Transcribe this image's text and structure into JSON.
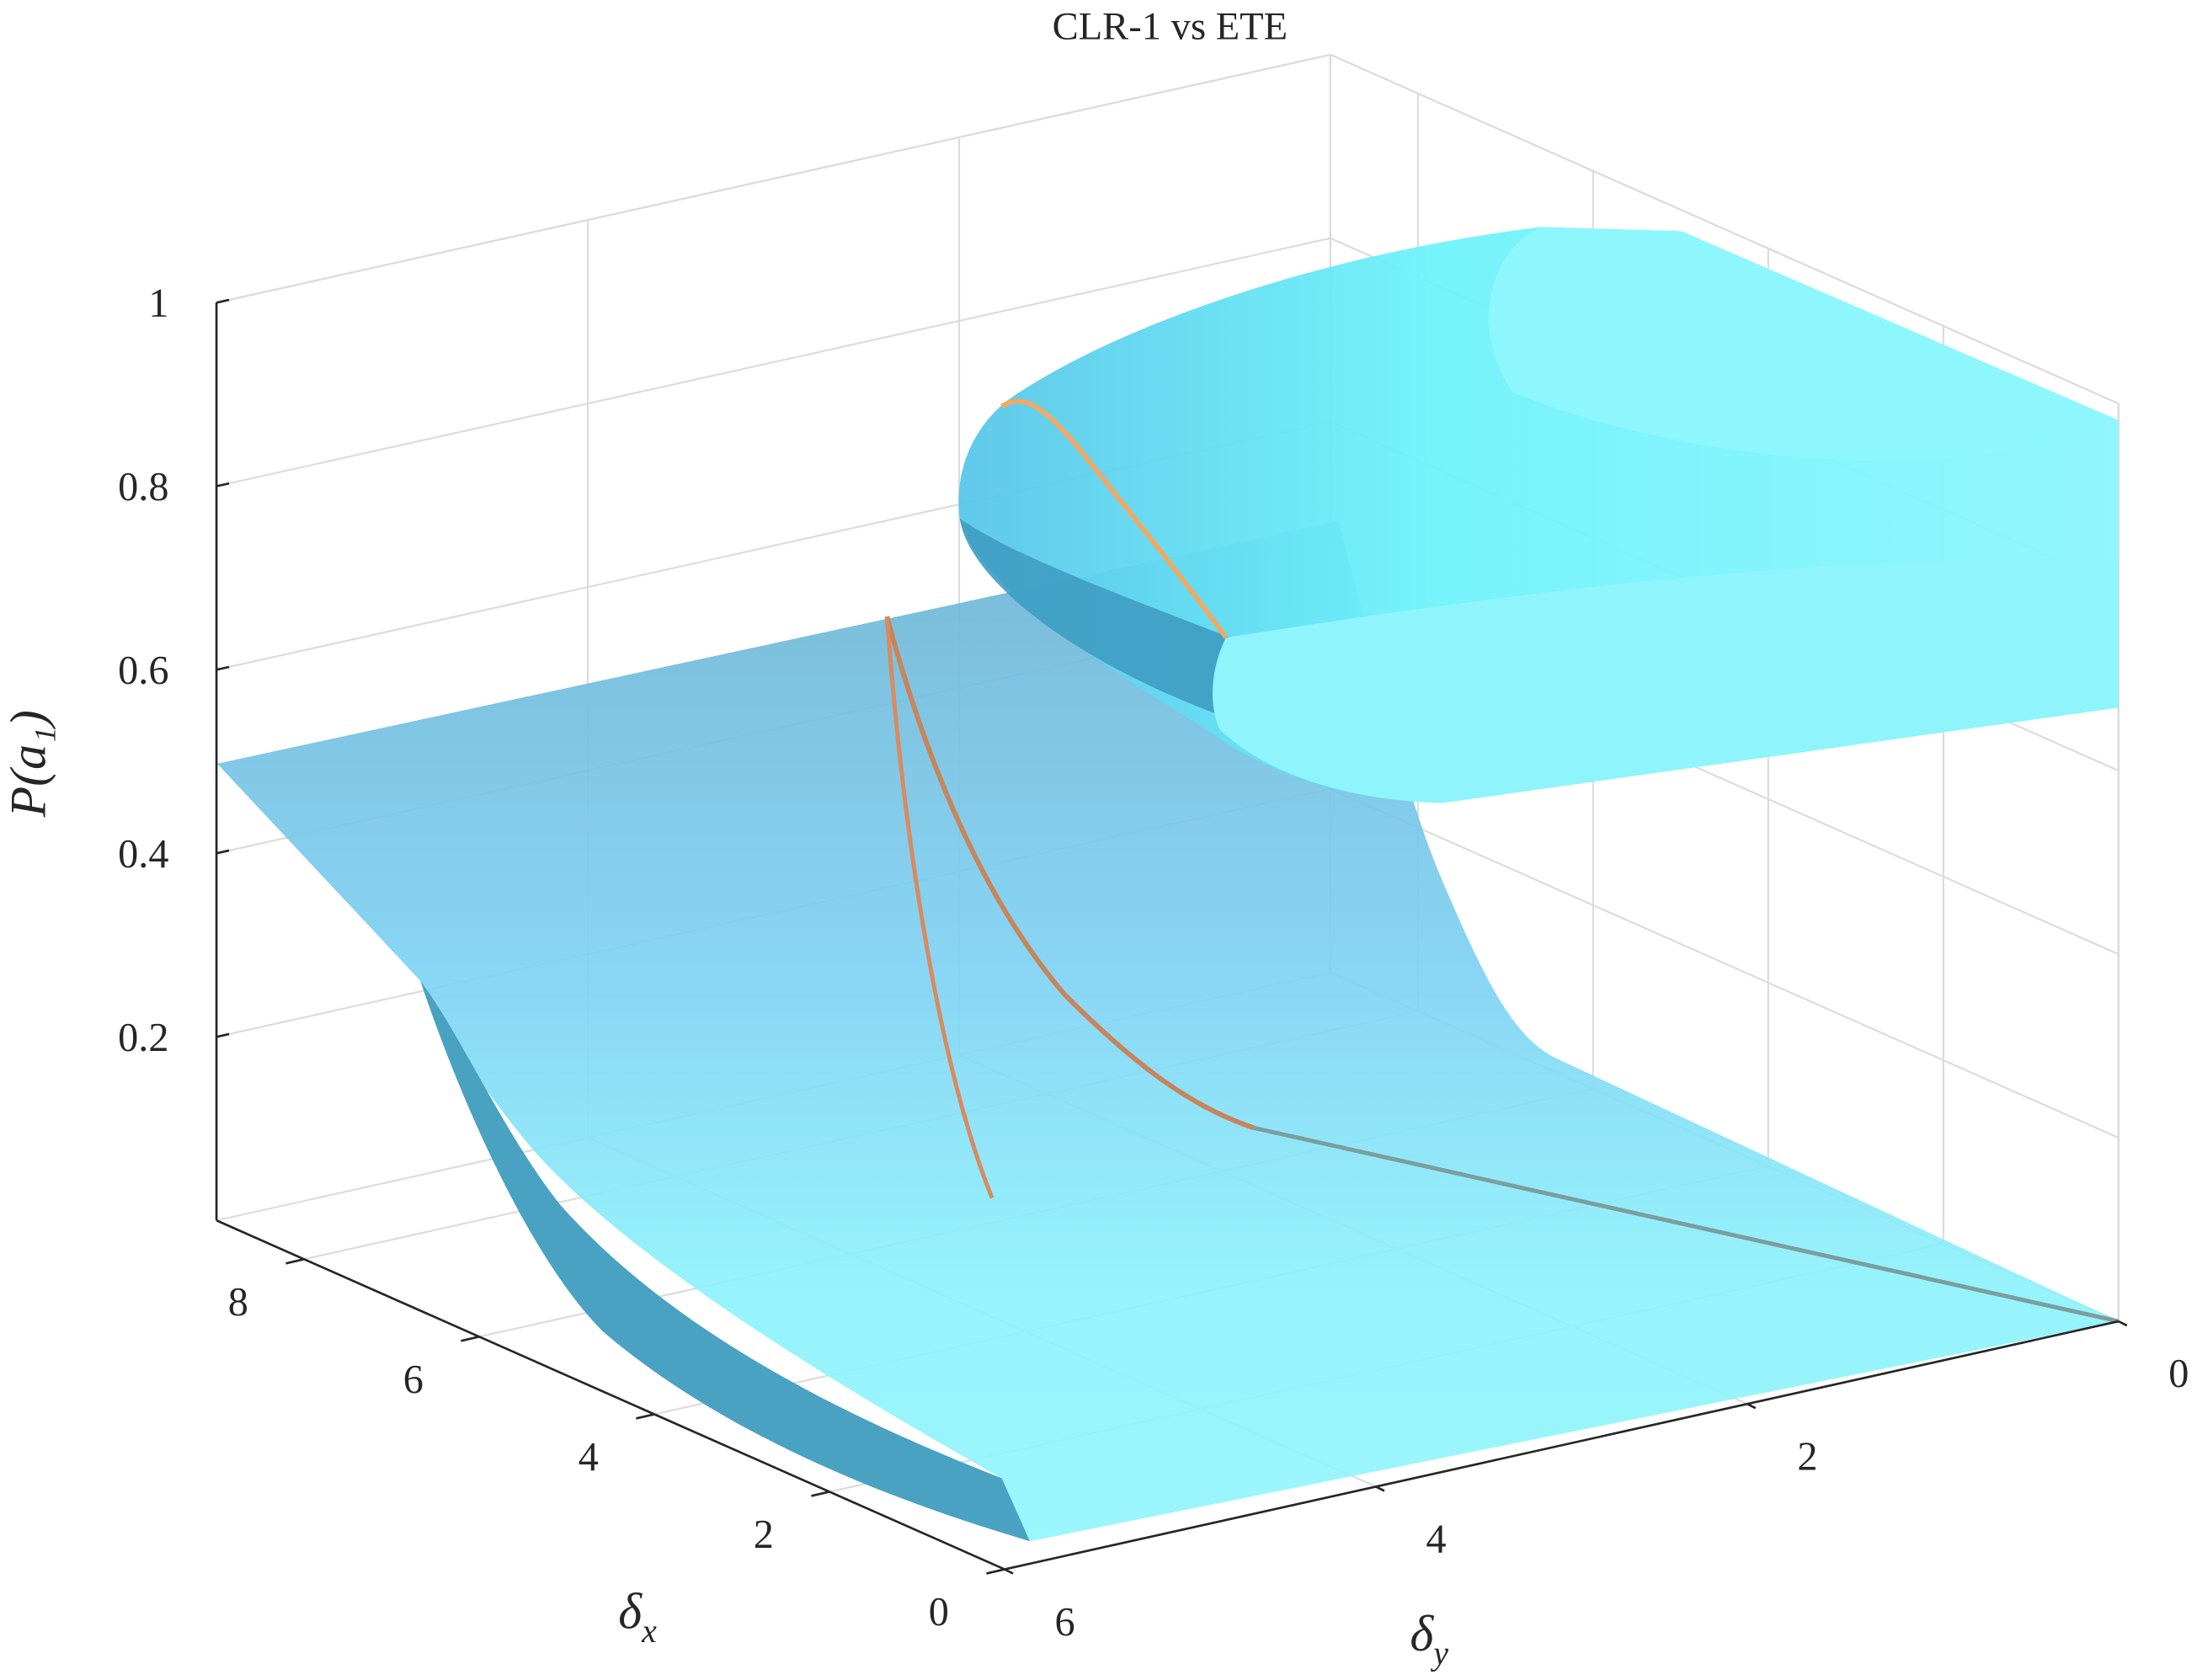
{
  "chart_data": {
    "type": "surface3d",
    "title": "CLR-1 vs ETE",
    "xlabel": {
      "main": "δ",
      "sub": "x"
    },
    "ylabel": {
      "main": "δ",
      "sub": "y"
    },
    "zlabel": "P(a₁)",
    "xlim": [
      0,
      9
    ],
    "ylim": [
      0,
      6
    ],
    "zlim": [
      0,
      1
    ],
    "xticks": [
      0,
      2,
      4,
      6,
      8
    ],
    "yticks": [
      0,
      2,
      4,
      6
    ],
    "zticks": [
      0.2,
      0.4,
      0.6,
      0.8,
      1
    ],
    "grid": true
  }
}
